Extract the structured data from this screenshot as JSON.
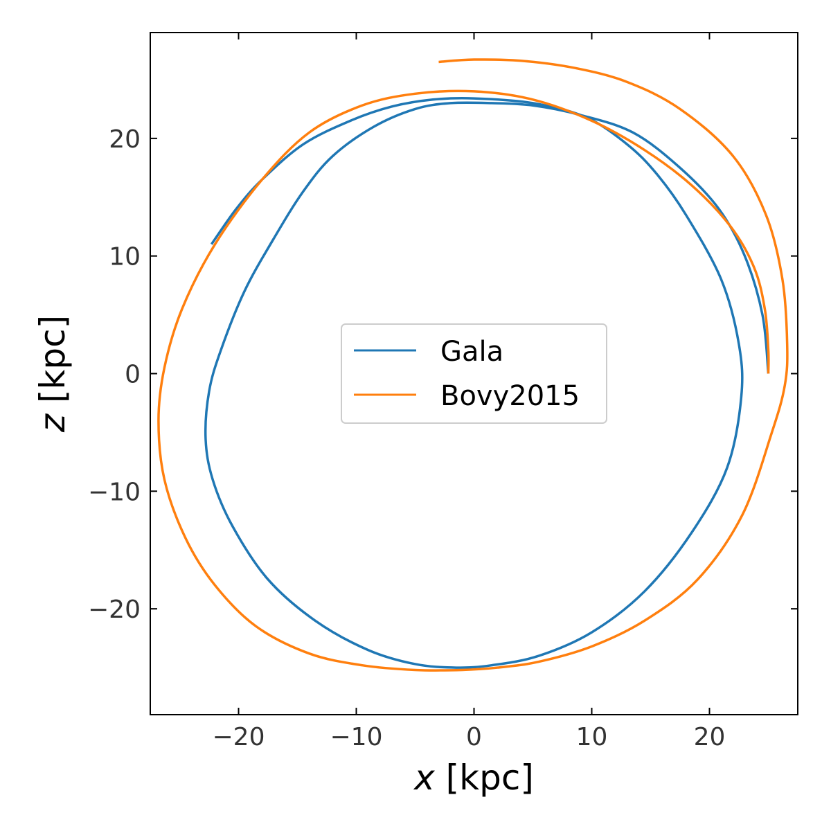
{
  "chart_data": {
    "type": "line",
    "xlabel": {
      "var": "x",
      "unit": " [kpc]"
    },
    "ylabel": {
      "var": "z",
      "unit": " [kpc]"
    },
    "xlim": [
      -27.5,
      27.5
    ],
    "ylim": [
      -29,
      29
    ],
    "xticks": [
      -20,
      -10,
      0,
      10,
      20
    ],
    "yticks": [
      -20,
      -10,
      0,
      10,
      20
    ],
    "tick_labels": [
      "−20",
      "−10",
      "0",
      "10",
      "20"
    ],
    "grid": false,
    "legend_position": "center",
    "series": [
      {
        "name": "Gala",
        "color": "#1f77b4",
        "x": [
          25.0,
          24.5,
          23.0,
          20.8,
          17.5,
          13.5,
          9.0,
          5.0,
          1.5,
          -2.0,
          -5.0,
          -8.5,
          -12.0,
          -14.5,
          -17.0,
          -19.5,
          -21.5,
          -22.5,
          -22.8,
          -22.2,
          -20.5,
          -17.5,
          -13.5,
          -9.0,
          -5.0,
          -1.5,
          1.5,
          5.5,
          10.0,
          14.5,
          18.5,
          21.5,
          22.7,
          22.5,
          21.0,
          18.0,
          15.5,
          13.0,
          9.5,
          5.0,
          0.0,
          -3.5,
          -7.0,
          -10.5,
          -14.5,
          -18.0,
          -20.2,
          -22.3
        ],
        "y": [
          0.0,
          5.0,
          10.0,
          14.0,
          17.5,
          20.5,
          22.0,
          22.8,
          23.0,
          23.0,
          22.5,
          21.0,
          18.5,
          15.5,
          11.5,
          7.0,
          2.0,
          -1.5,
          -5.5,
          -9.0,
          -13.0,
          -17.5,
          -21.0,
          -23.5,
          -24.7,
          -25.0,
          -24.8,
          -24.0,
          -22.0,
          -18.5,
          -13.5,
          -8.0,
          -2.0,
          2.5,
          8.0,
          13.5,
          17.0,
          19.5,
          21.8,
          23.0,
          23.4,
          23.3,
          22.7,
          21.5,
          19.5,
          16.5,
          14.0,
          11.0
        ]
      },
      {
        "name": "Bovy2015",
        "color": "#ff7f0e",
        "x": [
          25.0,
          25.0,
          24.7,
          23.8,
          21.8,
          18.5,
          14.5,
          10.0,
          5.0,
          0.0,
          -5.0,
          -9.5,
          -14.0,
          -18.0,
          -22.0,
          -24.8,
          -26.3,
          -26.8,
          -26.3,
          -24.5,
          -22.0,
          -18.5,
          -14.0,
          -9.5,
          -5.0,
          -1.0,
          2.0,
          5.5,
          10.0,
          14.5,
          19.0,
          22.8,
          25.3,
          26.4,
          26.6,
          26.2,
          24.8,
          22.0,
          17.5,
          13.0,
          8.5,
          4.0,
          0.0,
          -3.0
        ],
        "y": [
          0.0,
          2.0,
          5.5,
          9.0,
          12.5,
          16.0,
          19.0,
          21.5,
          23.3,
          24.0,
          23.8,
          22.8,
          20.5,
          16.5,
          11.0,
          5.5,
          0.5,
          -4.0,
          -9.0,
          -14.0,
          -18.0,
          -21.5,
          -23.8,
          -24.8,
          -25.2,
          -25.2,
          -25.0,
          -24.5,
          -23.2,
          -21.0,
          -17.5,
          -12.0,
          -5.0,
          -1.0,
          2.5,
          8.0,
          13.5,
          18.5,
          22.5,
          24.8,
          26.0,
          26.6,
          26.7,
          26.5
        ]
      }
    ]
  }
}
